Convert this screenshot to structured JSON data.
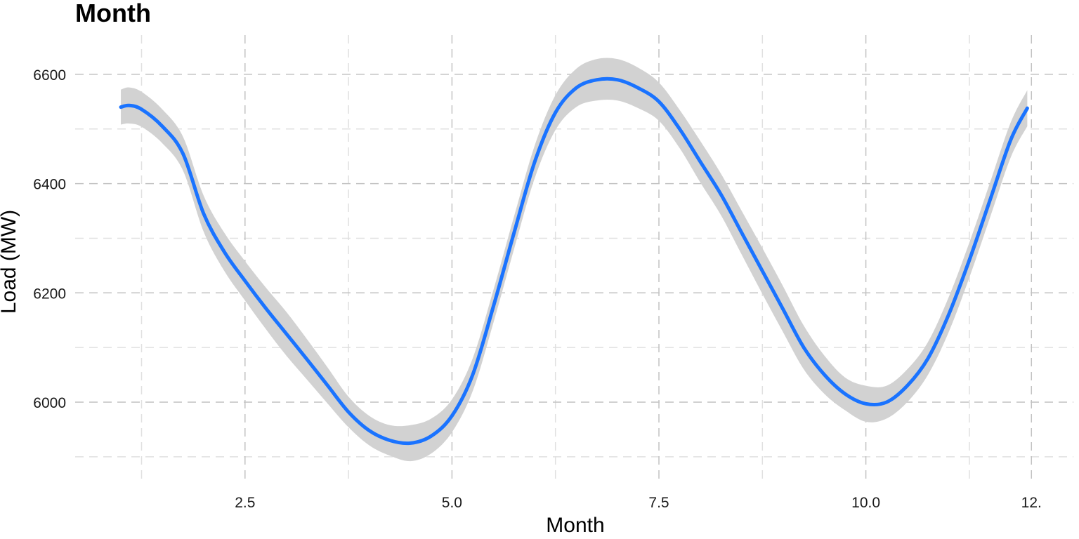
{
  "chart_data": {
    "type": "line",
    "title": "Month",
    "xlabel": "Month",
    "ylabel": "Load (MW)",
    "xlim": [
      0.3,
      12.0
    ],
    "ylim": [
      5870,
      6655
    ],
    "x_ticks": [
      2.5,
      5.0,
      7.5,
      10.0,
      12.0
    ],
    "x_tick_labels": [
      "2.5",
      "5.0",
      "7.5",
      "10.0",
      "12."
    ],
    "x_minor_gridlines": [
      1.25,
      3.75,
      6.25,
      8.75,
      11.25
    ],
    "y_ticks": [
      6000,
      6200,
      6400,
      6600
    ],
    "y_tick_labels": [
      "6000",
      "6200",
      "6400",
      "6600"
    ],
    "y_minor_gridlines": [
      5900,
      6100,
      6300,
      6500
    ],
    "grid": true,
    "grid_style": "dashed",
    "series": [
      {
        "type": "line",
        "color": "#1a73ff",
        "x": [
          1.0,
          1.1,
          1.25,
          1.5,
          1.75,
          2.0,
          2.25,
          2.5,
          2.75,
          3.0,
          3.25,
          3.5,
          3.75,
          4.0,
          4.25,
          4.5,
          4.75,
          5.0,
          5.25,
          5.5,
          5.75,
          6.0,
          6.25,
          6.5,
          6.75,
          7.0,
          7.25,
          7.5,
          7.75,
          8.0,
          8.25,
          8.5,
          8.75,
          9.0,
          9.25,
          9.5,
          9.75,
          10.0,
          10.25,
          10.5,
          10.75,
          11.0,
          11.25,
          11.5,
          11.75,
          11.95
        ],
        "values": [
          6540,
          6543,
          6536,
          6505,
          6455,
          6345,
          6275,
          6222,
          6172,
          6125,
          6078,
          6030,
          5982,
          5948,
          5930,
          5925,
          5938,
          5975,
          6050,
          6175,
          6310,
          6440,
          6530,
          6575,
          6590,
          6590,
          6575,
          6550,
          6500,
          6440,
          6380,
          6310,
          6240,
          6170,
          6100,
          6050,
          6015,
          5997,
          6000,
          6030,
          6080,
          6160,
          6260,
          6370,
          6480,
          6538
        ]
      },
      {
        "type": "band",
        "name": "",
        "color": "#d2d2d2",
        "x": [
          1.0,
          1.1,
          1.25,
          1.5,
          1.75,
          2.0,
          2.25,
          2.5,
          2.75,
          3.0,
          3.25,
          3.5,
          3.75,
          4.0,
          4.25,
          4.5,
          4.75,
          5.0,
          5.25,
          5.5,
          5.75,
          6.0,
          6.25,
          6.5,
          6.75,
          7.0,
          7.25,
          7.5,
          7.75,
          8.0,
          8.25,
          8.5,
          8.75,
          9.0,
          9.25,
          9.5,
          9.75,
          10.0,
          10.25,
          10.5,
          10.75,
          11.0,
          11.25,
          11.5,
          11.75,
          11.95
        ],
        "upper": [
          6572,
          6576,
          6568,
          6536,
          6486,
          6378,
          6310,
          6258,
          6210,
          6165,
          6115,
          6063,
          6010,
          5975,
          5958,
          5958,
          5970,
          6005,
          6080,
          6205,
          6340,
          6470,
          6562,
          6610,
          6628,
          6628,
          6612,
          6585,
          6535,
          6478,
          6418,
          6350,
          6282,
          6212,
          6140,
          6085,
          6045,
          6030,
          6030,
          6060,
          6110,
          6192,
          6292,
          6402,
          6512,
          6571
        ],
        "lower": [
          6508,
          6510,
          6504,
          6474,
          6424,
          6312,
          6240,
          6186,
          6134,
          6085,
          6041,
          5997,
          5954,
          5921,
          5902,
          5892,
          5906,
          5945,
          6020,
          6145,
          6280,
          6410,
          6498,
          6540,
          6552,
          6552,
          6538,
          6515,
          6465,
          6402,
          6342,
          6270,
          6198,
          6128,
          6060,
          6015,
          5985,
          5964,
          5970,
          6000,
          6050,
          6128,
          6228,
          6338,
          6448,
          6505
        ]
      }
    ]
  }
}
